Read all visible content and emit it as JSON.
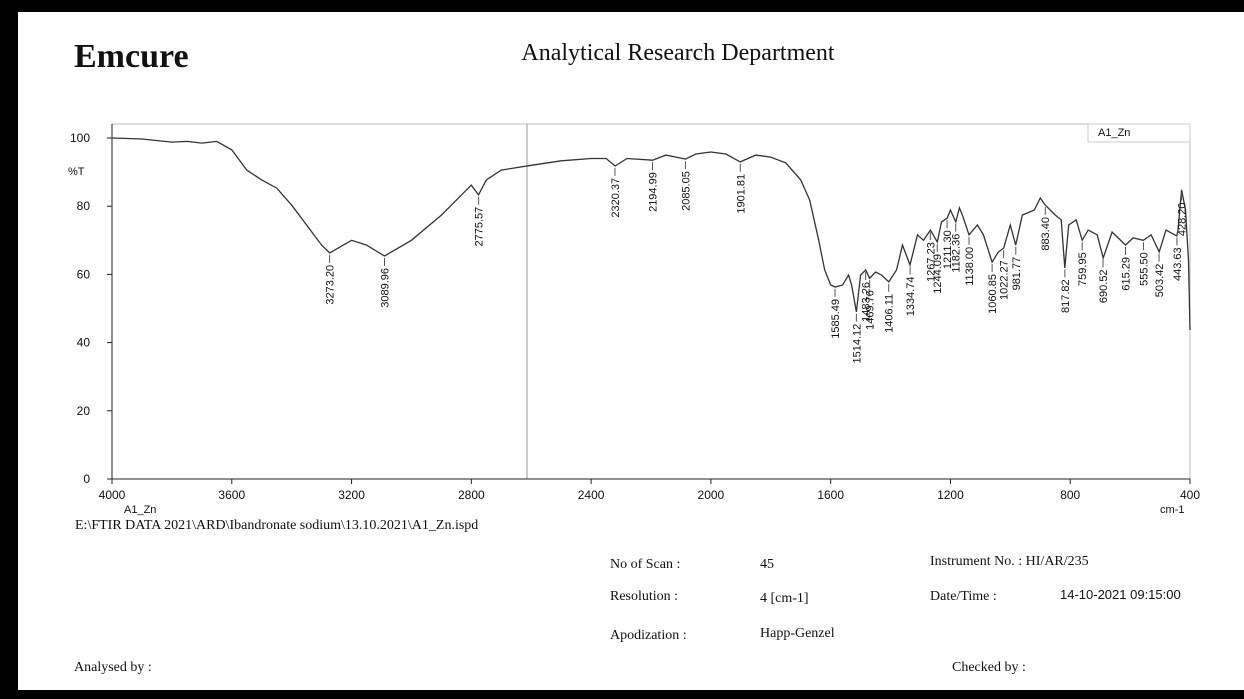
{
  "header": {
    "company": "Emcure",
    "department": "Analytical Research Department"
  },
  "chart_data": {
    "type": "line",
    "legend": "A1_Zn",
    "sample_label": "A1_Zn",
    "y_unit": "%T",
    "x_unit": "cm-1",
    "xlim": [
      4000,
      400
    ],
    "ylim": [
      0,
      100
    ],
    "xticks": [
      4000,
      3600,
      3200,
      2800,
      2400,
      2000,
      1600,
      1200,
      800,
      400
    ],
    "yticks": [
      0,
      20,
      40,
      60,
      80,
      100
    ],
    "series": [
      {
        "name": "A1_Zn",
        "color": "#333333",
        "x": [
          4000,
          3900,
          3800,
          3750,
          3700,
          3650,
          3600,
          3550,
          3500,
          3450,
          3400,
          3350,
          3300,
          3273,
          3200,
          3150,
          3090,
          3000,
          2900,
          2850,
          2800,
          2776,
          2750,
          2700,
          2600,
          2500,
          2400,
          2350,
          2320,
          2280,
          2195,
          2150,
          2085,
          2050,
          2000,
          1950,
          1902,
          1850,
          1800,
          1750,
          1700,
          1670,
          1640,
          1620,
          1600,
          1585,
          1560,
          1540,
          1530,
          1514,
          1500,
          1483,
          1470,
          1450,
          1430,
          1406,
          1380,
          1360,
          1335,
          1310,
          1290,
          1267,
          1244,
          1230,
          1211,
          1200,
          1182,
          1170,
          1160,
          1138,
          1110,
          1090,
          1061,
          1040,
          1022,
          1000,
          982,
          960,
          920,
          900,
          883,
          850,
          830,
          818,
          805,
          780,
          760,
          740,
          710,
          690,
          660,
          615,
          590,
          556,
          530,
          503,
          480,
          444,
          440,
          428,
          415,
          405,
          400
        ],
        "values": [
          100,
          99.7,
          98.8,
          99,
          98.5,
          99,
          96.5,
          90.6,
          87.7,
          85.3,
          80.3,
          74.5,
          68.6,
          66.3,
          70,
          68.6,
          65.4,
          70,
          77.4,
          81.8,
          86.2,
          83.3,
          87.7,
          90.6,
          92,
          93.3,
          94,
          94,
          91.8,
          94,
          93.5,
          95,
          93.8,
          95.3,
          95.9,
          95.3,
          93,
          95,
          94.4,
          92.7,
          87.7,
          81.8,
          70,
          61.3,
          56.9,
          56.3,
          56.9,
          59.8,
          56.9,
          49,
          59.8,
          61.3,
          58.9,
          60.7,
          59.8,
          57.8,
          61.3,
          68.6,
          62.8,
          71.6,
          70,
          73,
          69.5,
          75.4,
          76.5,
          78.9,
          75.4,
          79.5,
          77.4,
          71.6,
          74.5,
          71.6,
          63.6,
          66.6,
          67.7,
          74.5,
          68.6,
          77.4,
          78.9,
          82.4,
          80.3,
          77.4,
          76,
          61.9,
          74.5,
          76,
          70,
          73,
          71.6,
          64.8,
          72.4,
          68.6,
          70.7,
          70,
          71.6,
          66.6,
          73,
          71.3,
          73,
          84.8,
          78.9,
          64.2,
          43.7
        ]
      }
    ],
    "annotations": [
      {
        "x": 3273.2,
        "text": "3273.20"
      },
      {
        "x": 3089.96,
        "text": "3089.96"
      },
      {
        "x": 2775.57,
        "text": "2775.57"
      },
      {
        "x": 2320.37,
        "text": "2320.37"
      },
      {
        "x": 2194.99,
        "text": "2194.99"
      },
      {
        "x": 2085.05,
        "text": "2085.05"
      },
      {
        "x": 1901.81,
        "text": "1901.81"
      },
      {
        "x": 1585.49,
        "text": "1585.49"
      },
      {
        "x": 1514.12,
        "text": "1514.12"
      },
      {
        "x": 1483.26,
        "text": "1483.26"
      },
      {
        "x": 1469.76,
        "text": "1469.76"
      },
      {
        "x": 1406.11,
        "text": "1406.11"
      },
      {
        "x": 1334.74,
        "text": "1334.74"
      },
      {
        "x": 1267.23,
        "text": "1267.23"
      },
      {
        "x": 1244.09,
        "text": "1244.09"
      },
      {
        "x": 1211.3,
        "text": "1211.30"
      },
      {
        "x": 1182.36,
        "text": "1182.36"
      },
      {
        "x": 1138,
        "text": "1138.00"
      },
      {
        "x": 1060.85,
        "text": "1060.85"
      },
      {
        "x": 1022.27,
        "text": "1022.27"
      },
      {
        "x": 981.77,
        "text": "981.77"
      },
      {
        "x": 883.4,
        "text": "883.40"
      },
      {
        "x": 817.82,
        "text": "817.82"
      },
      {
        "x": 759.95,
        "text": "759.95"
      },
      {
        "x": 690.52,
        "text": "690.52"
      },
      {
        "x": 615.29,
        "text": "615.29"
      },
      {
        "x": 555.5,
        "text": "555.50"
      },
      {
        "x": 503.42,
        "text": "503.42"
      },
      {
        "x": 443.63,
        "text": "443.63"
      },
      {
        "x": 428.2,
        "text": "428.20"
      }
    ]
  },
  "file_path": "E:\\FTIR DATA 2021\\ARD\\Ibandronate sodium\\13.10.2021\\A1_Zn.ispd",
  "info": {
    "scan_label": "No of Scan :",
    "scan_value": "45",
    "resolution_label": "Resolution :",
    "resolution_value": "4 [cm-1]",
    "apodization_label": "Apodization :",
    "apodization_value": "Happ-Genzel",
    "instrument": "Instrument No. : HI/AR/235",
    "datetime_label": "Date/Time :",
    "datetime_value": "14-10-2021 09:15:00"
  },
  "footer": {
    "analysed": "Analysed by :",
    "checked": "Checked by :"
  }
}
